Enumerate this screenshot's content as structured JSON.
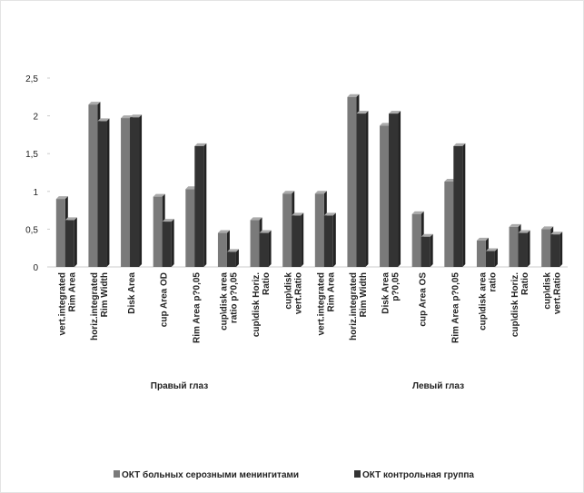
{
  "chart_data": {
    "type": "bar",
    "categories": [
      [
        "vert.integrated",
        "Rim Area"
      ],
      [
        "horiz.integrated",
        "Rim Width"
      ],
      [
        "Disk Area"
      ],
      [
        "cup Area OD"
      ],
      [
        "Rim Area p?0,05"
      ],
      [
        "cup\\disk area",
        "ratio p?0,05"
      ],
      [
        "cup\\disk Horiz.",
        "Ratio"
      ],
      [
        "cup\\disk",
        "vert.Ratio"
      ],
      [
        "vert.integrated",
        "Rim Area"
      ],
      [
        "horiz.integrated",
        "Rim Width"
      ],
      [
        "Disk Area",
        "p?0,05"
      ],
      [
        "cup Area OS"
      ],
      [
        "Rim Area p?0,05"
      ],
      [
        "cup\\disk area",
        "ratio"
      ],
      [
        "cup\\disk Horiz.",
        "Ratio"
      ],
      [
        "cup\\disk",
        "vert.Ratio"
      ]
    ],
    "group_labels": [
      "Правый глаз",
      "Левый глаз"
    ],
    "series": [
      {
        "name": "ОКТ больных серозными менингитами",
        "color": "#7a7a7a",
        "values": [
          0.9,
          2.15,
          1.97,
          0.93,
          1.03,
          0.45,
          0.62,
          0.97,
          0.97,
          2.25,
          1.87,
          0.7,
          1.13,
          0.35,
          0.53,
          0.5
        ]
      },
      {
        "name": "ОКТ контрольная группа",
        "color": "#333333",
        "values": [
          0.62,
          1.93,
          1.98,
          0.6,
          1.6,
          0.2,
          0.45,
          0.68,
          0.68,
          2.03,
          2.03,
          0.4,
          1.6,
          0.21,
          0.45,
          0.43
        ]
      }
    ],
    "ylim": [
      0,
      2.5
    ],
    "yticks": [
      {
        "value": 0,
        "label": "0"
      },
      {
        "value": 0.5,
        "label": "0,5"
      },
      {
        "value": 1,
        "label": "1"
      },
      {
        "value": 1.5,
        "label": "1,5"
      },
      {
        "value": 2,
        "label": "2"
      },
      {
        "value": 2.5,
        "label": "2,5"
      }
    ],
    "grid": false
  }
}
